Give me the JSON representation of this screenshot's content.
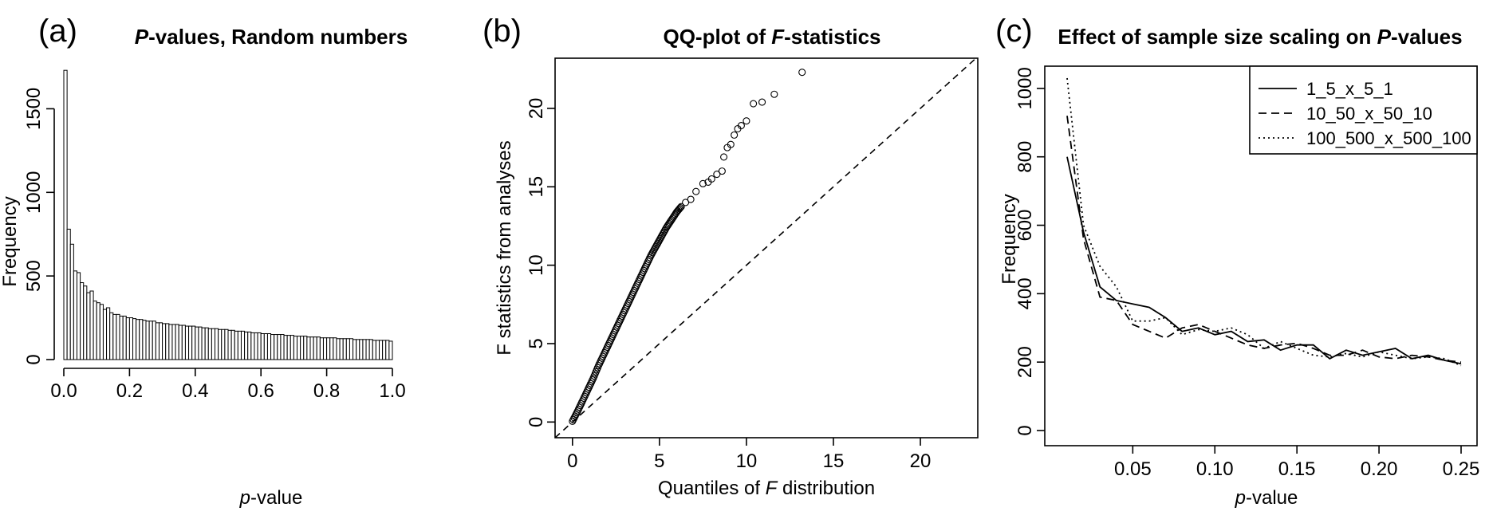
{
  "chart_data": [
    {
      "panel": "(a)",
      "type": "bar",
      "title": [
        "P",
        "-values, Random numbers"
      ],
      "xlabel": [
        "p",
        "-value"
      ],
      "ylabel": "Frequency",
      "xlim": [
        0,
        1
      ],
      "ylim": [
        0,
        1750
      ],
      "x_ticks": [
        0,
        0.2,
        0.4,
        0.6,
        0.8,
        1.0
      ],
      "x_tick_labels": [
        "0.0",
        "0.2",
        "0.4",
        "0.6",
        "0.8",
        "1.0"
      ],
      "y_ticks": [
        0,
        500,
        1000,
        1500
      ],
      "y_tick_labels": [
        "0",
        "500",
        "1000",
        "1500"
      ],
      "bin_width": 0.01,
      "values": [
        1730,
        780,
        690,
        530,
        520,
        460,
        440,
        400,
        410,
        350,
        340,
        330,
        300,
        310,
        280,
        270,
        270,
        260,
        260,
        250,
        250,
        245,
        240,
        240,
        235,
        230,
        230,
        230,
        220,
        220,
        215,
        215,
        210,
        210,
        210,
        205,
        205,
        200,
        200,
        200,
        195,
        195,
        190,
        190,
        185,
        185,
        185,
        180,
        180,
        180,
        175,
        175,
        170,
        170,
        170,
        165,
        165,
        160,
        160,
        160,
        155,
        155,
        155,
        150,
        150,
        150,
        150,
        145,
        145,
        145,
        140,
        140,
        140,
        140,
        135,
        135,
        135,
        135,
        130,
        130,
        130,
        130,
        130,
        125,
        125,
        125,
        125,
        125,
        120,
        120,
        120,
        120,
        120,
        120,
        115,
        115,
        115,
        115,
        115,
        110
      ]
    },
    {
      "panel": "(b)",
      "type": "scatter",
      "title": [
        "QQ-plot of ",
        "F",
        "-statistics"
      ],
      "xlabel": [
        "Quantiles of ",
        "F",
        " distribution"
      ],
      "ylabel": "F statistics from analyses",
      "xlim": [
        -1,
        23.3
      ],
      "ylim": [
        -1,
        23.2
      ],
      "x_ticks": [
        0,
        5,
        10,
        15,
        20
      ],
      "x_tick_labels": [
        "0",
        "5",
        "10",
        "15",
        "20"
      ],
      "y_ticks": [
        0,
        5,
        10,
        15,
        20
      ],
      "y_tick_labels": [
        "0",
        "5",
        "10",
        "15",
        "20"
      ],
      "reference_line": "dashed y = x",
      "points": [
        [
          0.0,
          0.05
        ],
        [
          0.3,
          0.7
        ],
        [
          0.6,
          1.4
        ],
        [
          0.9,
          2.1
        ],
        [
          1.2,
          2.8
        ],
        [
          1.5,
          3.6
        ],
        [
          1.8,
          4.3
        ],
        [
          2.1,
          5.0
        ],
        [
          2.4,
          5.7
        ],
        [
          2.7,
          6.4
        ],
        [
          3.0,
          7.1
        ],
        [
          3.3,
          7.8
        ],
        [
          3.6,
          8.5
        ],
        [
          3.9,
          9.2
        ],
        [
          4.2,
          9.9
        ],
        [
          4.5,
          10.6
        ],
        [
          4.8,
          11.2
        ],
        [
          5.1,
          11.8
        ],
        [
          5.4,
          12.4
        ],
        [
          5.7,
          12.9
        ],
        [
          6.0,
          13.4
        ],
        [
          6.3,
          13.8
        ],
        [
          6.5,
          14.0
        ],
        [
          6.8,
          14.2
        ],
        [
          7.1,
          14.7
        ],
        [
          7.5,
          15.2
        ],
        [
          7.8,
          15.3
        ],
        [
          8.0,
          15.5
        ],
        [
          8.3,
          15.8
        ],
        [
          8.6,
          16.0
        ],
        [
          8.7,
          16.9
        ],
        [
          8.9,
          17.5
        ],
        [
          9.1,
          17.7
        ],
        [
          9.3,
          18.3
        ],
        [
          9.5,
          18.7
        ],
        [
          9.7,
          18.9
        ],
        [
          10.0,
          19.2
        ],
        [
          10.4,
          20.3
        ],
        [
          10.9,
          20.4
        ],
        [
          11.6,
          20.9
        ],
        [
          13.2,
          22.3
        ]
      ]
    },
    {
      "panel": "(c)",
      "type": "line",
      "title": [
        "Effect of sample size scaling on ",
        "P",
        "-values"
      ],
      "xlabel": [
        "p",
        "-value"
      ],
      "ylabel": "Frequency",
      "xlim": [
        0,
        0.25
      ],
      "ylim": [
        0,
        1030
      ],
      "x_ticks": [
        0.05,
        0.1,
        0.15,
        0.2,
        0.25
      ],
      "x_tick_labels": [
        "0.05",
        "0.10",
        "0.15",
        "0.20",
        "0.25"
      ],
      "y_ticks": [
        0,
        200,
        400,
        600,
        800,
        1000
      ],
      "y_tick_labels": [
        "0",
        "200",
        "400",
        "600",
        "800",
        "1000"
      ],
      "legend_position": "top-right",
      "x": [
        0.01,
        0.02,
        0.03,
        0.04,
        0.05,
        0.06,
        0.07,
        0.08,
        0.09,
        0.1,
        0.11,
        0.12,
        0.13,
        0.14,
        0.15,
        0.16,
        0.17,
        0.18,
        0.19,
        0.2,
        0.21,
        0.22,
        0.23,
        0.24,
        0.25
      ],
      "series": [
        {
          "name": "1_5_x_5_1",
          "style": "solid",
          "values": [
            800,
            580,
            420,
            380,
            370,
            360,
            330,
            290,
            300,
            280,
            290,
            260,
            265,
            235,
            250,
            250,
            210,
            235,
            220,
            230,
            240,
            210,
            220,
            205,
            195
          ]
        },
        {
          "name": "10_50_x_50_10",
          "style": "dashed",
          "values": [
            920,
            560,
            390,
            380,
            310,
            290,
            270,
            300,
            310,
            290,
            270,
            250,
            240,
            250,
            255,
            240,
            220,
            220,
            235,
            215,
            210,
            220,
            215,
            205,
            200
          ]
        },
        {
          "name": "100_500_x_500_100",
          "style": "dotted",
          "values": [
            1030,
            600,
            480,
            420,
            320,
            320,
            330,
            280,
            295,
            290,
            300,
            280,
            240,
            260,
            240,
            220,
            215,
            225,
            215,
            230,
            220,
            210,
            215,
            210,
            190
          ]
        }
      ]
    }
  ]
}
